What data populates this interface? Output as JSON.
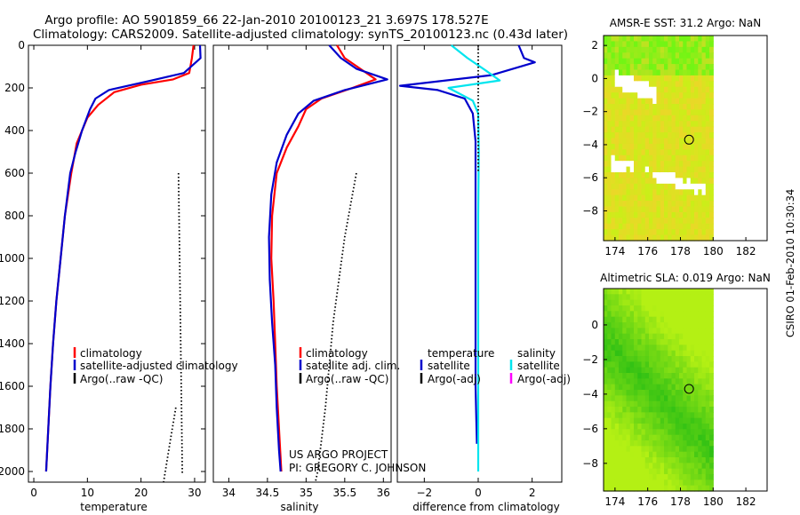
{
  "header": {
    "title_line1": "Argo profile: AO 5901859_66 22-Jan-2010 20100123_21 3.697S 178.527E",
    "title_line2": "Climatology: CARS2009. Satellite-adjusted climatology: synTS_20100123.nc (0.43d later)"
  },
  "credits": {
    "project": "US ARGO PROJECT",
    "pi": "PI: GREGORY C. JOHNSON",
    "side_stamp": "CSIRO 01-Feb-2010 10:30:34"
  },
  "colors": {
    "climatology": "#ff0000",
    "satellite": "#0000cc",
    "argo": "#000000",
    "diff_salinity_satellite": "#00e5ee",
    "diff_salinity_argo": "#ff00ff"
  },
  "chart_data": [
    {
      "id": "temperature",
      "type": "line",
      "xlabel": "temperature",
      "ylabel": "",
      "xlim": [
        -1,
        32
      ],
      "ylim": [
        2050,
        0
      ],
      "xticks": [
        0,
        10,
        20,
        30
      ],
      "yticks": [
        0,
        200,
        400,
        600,
        800,
        1000,
        1200,
        1400,
        1600,
        1800,
        2000
      ],
      "legend": [
        "climatology",
        "satellite-adjusted climatology",
        "Argo(..raw -QC)"
      ],
      "series": [
        {
          "name": "climatology",
          "style": "solid",
          "color": "climatology",
          "points": [
            [
              29.8,
              0
            ],
            [
              29.5,
              60
            ],
            [
              29.0,
              130
            ],
            [
              26.0,
              160
            ],
            [
              20.0,
              185
            ],
            [
              15.0,
              220
            ],
            [
              12.0,
              280
            ],
            [
              10.0,
              340
            ],
            [
              8.0,
              460
            ],
            [
              7.0,
              600
            ],
            [
              5.8,
              800
            ],
            [
              5.0,
              1000
            ],
            [
              4.2,
              1200
            ],
            [
              3.6,
              1400
            ],
            [
              3.1,
              1600
            ],
            [
              2.7,
              1800
            ],
            [
              2.3,
              2000
            ]
          ]
        },
        {
          "name": "satellite-adjusted climatology",
          "style": "solid",
          "color": "satellite",
          "points": [
            [
              31.0,
              0
            ],
            [
              31.1,
              60
            ],
            [
              28.0,
              130
            ],
            [
              22.0,
              165
            ],
            [
              14.0,
              210
            ],
            [
              11.5,
              250
            ],
            [
              10.5,
              300
            ],
            [
              9.0,
              400
            ],
            [
              7.8,
              500
            ],
            [
              6.8,
              600
            ],
            [
              5.8,
              800
            ],
            [
              5.0,
              1000
            ],
            [
              4.2,
              1200
            ],
            [
              3.6,
              1400
            ],
            [
              3.1,
              1600
            ],
            [
              2.7,
              1800
            ],
            [
              2.3,
              2000
            ]
          ]
        },
        {
          "name": "Argo(..raw -QC)",
          "style": "dotted",
          "color": "argo",
          "points": [
            [
              27.0,
              600
            ],
            [
              27.2,
              1000
            ],
            [
              27.4,
              1400
            ],
            [
              27.6,
              1800
            ],
            [
              27.7,
              2010
            ]
          ]
        },
        {
          "name": "Argo(..raw -QC)",
          "style": "dotted",
          "color": "argo",
          "points": [
            [
              26.5,
              1700
            ],
            [
              25.5,
              1850
            ],
            [
              24.2,
              2050
            ]
          ]
        }
      ]
    },
    {
      "id": "salinity",
      "type": "line",
      "xlabel": "salinity",
      "ylabel": "",
      "xlim": [
        33.8,
        36.1
      ],
      "ylim": [
        2050,
        0
      ],
      "xticks": [
        34,
        34.5,
        35,
        35.5,
        36
      ],
      "yticks": [],
      "legend": [
        "climatology",
        "satellite adj. clim.",
        "Argo(..raw -QC)"
      ],
      "series": [
        {
          "name": "climatology",
          "style": "solid",
          "color": "climatology",
          "points": [
            [
              35.4,
              0
            ],
            [
              35.5,
              60
            ],
            [
              35.7,
              110
            ],
            [
              35.9,
              160
            ],
            [
              35.6,
              200
            ],
            [
              35.2,
              250
            ],
            [
              35.0,
              300
            ],
            [
              34.9,
              380
            ],
            [
              34.75,
              480
            ],
            [
              34.62,
              600
            ],
            [
              34.56,
              800
            ],
            [
              34.55,
              1000
            ],
            [
              34.58,
              1200
            ],
            [
              34.6,
              1400
            ],
            [
              34.62,
              1600
            ],
            [
              34.65,
              1800
            ],
            [
              34.68,
              2000
            ]
          ]
        },
        {
          "name": "satellite adj. clim.",
          "style": "solid",
          "color": "satellite",
          "points": [
            [
              35.3,
              0
            ],
            [
              35.45,
              60
            ],
            [
              35.65,
              110
            ],
            [
              36.05,
              160
            ],
            [
              35.5,
              210
            ],
            [
              35.1,
              260
            ],
            [
              34.9,
              320
            ],
            [
              34.75,
              420
            ],
            [
              34.62,
              550
            ],
            [
              34.55,
              700
            ],
            [
              34.52,
              900
            ],
            [
              34.53,
              1100
            ],
            [
              34.56,
              1300
            ],
            [
              34.6,
              1500
            ],
            [
              34.62,
              1700
            ],
            [
              34.65,
              1900
            ],
            [
              34.67,
              2000
            ]
          ]
        },
        {
          "name": "Argo(..raw -QC)",
          "style": "dotted",
          "color": "argo",
          "points": [
            [
              35.65,
              600
            ],
            [
              35.5,
              900
            ],
            [
              35.35,
              1300
            ],
            [
              35.25,
              1700
            ],
            [
              35.15,
              2000
            ],
            [
              35.12,
              2050
            ]
          ]
        }
      ]
    },
    {
      "id": "difference",
      "type": "line",
      "xlabel": "difference from climatology",
      "ylabel": "",
      "xlim": [
        -3,
        3.1
      ],
      "ylim": [
        2050,
        0
      ],
      "xticks": [
        -2,
        0,
        2
      ],
      "tick_labels": [
        "−2",
        "0",
        "2"
      ],
      "yticks": [],
      "legend": [
        "temperature",
        "salinity",
        "satellite",
        "satellite",
        "Argo(-adj)",
        "Argo(-adj)"
      ],
      "legend_headers": [
        "temperature",
        "salinity"
      ],
      "series": [
        {
          "name": "temperature satellite",
          "style": "solid",
          "color": "satellite",
          "points": [
            [
              1.5,
              0
            ],
            [
              1.7,
              60
            ],
            [
              2.1,
              80
            ],
            [
              0.5,
              140
            ],
            [
              -2.9,
              190
            ],
            [
              -1.5,
              210
            ],
            [
              -0.5,
              250
            ],
            [
              -0.2,
              320
            ],
            [
              -0.1,
              450
            ],
            [
              -0.1,
              700
            ],
            [
              -0.1,
              1000
            ],
            [
              -0.1,
              1300
            ],
            [
              -0.1,
              1600
            ],
            [
              -0.05,
              1870
            ]
          ]
        },
        {
          "name": "salinity satellite",
          "style": "solid",
          "color": "diff_salinity_satellite",
          "points": [
            [
              -1.0,
              0
            ],
            [
              -0.4,
              60
            ],
            [
              0.3,
              120
            ],
            [
              0.8,
              165
            ],
            [
              -1.1,
              200
            ],
            [
              -0.2,
              260
            ],
            [
              0,
              320
            ],
            [
              0.02,
              500
            ],
            [
              0,
              800
            ],
            [
              0,
              1200
            ],
            [
              0,
              1600
            ],
            [
              0,
              2000
            ]
          ]
        },
        {
          "name": "zero reference",
          "style": "dotted",
          "color": "argo",
          "points": [
            [
              0,
              0
            ],
            [
              0,
              600
            ]
          ]
        }
      ]
    },
    {
      "id": "amsre-sst",
      "type": "heatmap",
      "title": "AMSR-E SST: 31.2  Argo: NaN",
      "xlabel": "",
      "ylabel": "",
      "xlim": [
        173.3,
        183.3
      ],
      "ylim": [
        -9.8,
        2.6
      ],
      "xticks": [
        174,
        176,
        178,
        180,
        182
      ],
      "yticks": [
        2,
        0,
        -2,
        -4,
        -6,
        -8
      ],
      "tick_labels": [
        "2",
        "0",
        "−2",
        "−4",
        "−6",
        "−8"
      ],
      "data_xrange": [
        173.3,
        180.0
      ],
      "float_position": [
        178.527,
        -3.697
      ]
    },
    {
      "id": "altimetric-sla",
      "type": "heatmap",
      "title": "Altimetric SLA: 0.019  Argo: NaN",
      "xlabel": "",
      "ylabel": "",
      "xlim": [
        173.3,
        183.3
      ],
      "ylim": [
        -9.6,
        2.1
      ],
      "xticks": [
        174,
        176,
        178,
        180,
        182
      ],
      "yticks": [
        0,
        -2,
        -4,
        -6,
        -8
      ],
      "tick_labels": [
        "0",
        "−2",
        "−4",
        "−6",
        "−8"
      ],
      "data_xrange": [
        173.3,
        180.0
      ],
      "float_position": [
        178.527,
        -3.697
      ]
    }
  ]
}
